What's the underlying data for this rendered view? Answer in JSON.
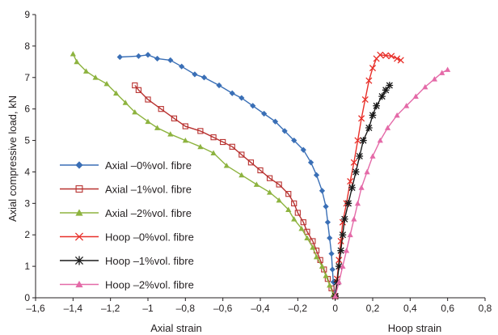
{
  "chart_data": {
    "type": "scatter",
    "title": "",
    "ylabel": "Axial compressive load, kN",
    "xlabel_left": "Axial strain",
    "xlabel_right": "Hoop strain",
    "xlim": [
      -1.6,
      0.8
    ],
    "ylim": [
      0,
      9
    ],
    "x_ticks": [
      -1.6,
      -1.4,
      -1.2,
      -1,
      -0.8,
      -0.6,
      -0.4,
      -0.2,
      0,
      0.2,
      0.4,
      0.6,
      0.8
    ],
    "x_tick_labels": [
      "–1,6",
      "–1,4",
      "–1,2",
      "–1",
      "–0,8",
      "–0,6",
      "–0,4",
      "–0,2",
      "0",
      "0,2",
      "0,4",
      "0,6",
      "0,8"
    ],
    "y_ticks": [
      0,
      1,
      2,
      3,
      4,
      5,
      6,
      7,
      8,
      9
    ],
    "y_tick_labels": [
      "0",
      "1",
      "2",
      "3",
      "4",
      "5",
      "6",
      "7",
      "8",
      "9"
    ],
    "grid": false,
    "legend_position": "left",
    "series": [
      {
        "name": "Axial –0%vol. fibre",
        "color": "#3a6fb6",
        "marker": "diamond",
        "points": [
          [
            -1.15,
            7.65
          ],
          [
            -1.05,
            7.68
          ],
          [
            -1.0,
            7.72
          ],
          [
            -0.95,
            7.6
          ],
          [
            -0.88,
            7.55
          ],
          [
            -0.82,
            7.35
          ],
          [
            -0.75,
            7.1
          ],
          [
            -0.7,
            7.0
          ],
          [
            -0.62,
            6.75
          ],
          [
            -0.55,
            6.5
          ],
          [
            -0.5,
            6.35
          ],
          [
            -0.44,
            6.1
          ],
          [
            -0.38,
            5.85
          ],
          [
            -0.32,
            5.6
          ],
          [
            -0.27,
            5.3
          ],
          [
            -0.22,
            5.0
          ],
          [
            -0.17,
            4.7
          ],
          [
            -0.13,
            4.3
          ],
          [
            -0.1,
            3.9
          ],
          [
            -0.07,
            3.4
          ],
          [
            -0.05,
            2.9
          ],
          [
            -0.04,
            2.4
          ],
          [
            -0.03,
            1.9
          ],
          [
            -0.02,
            1.4
          ],
          [
            -0.015,
            0.9
          ],
          [
            -0.01,
            0.5
          ],
          [
            0.0,
            0.05
          ]
        ]
      },
      {
        "name": "Axial –1%vol. fibre",
        "color": "#b8312f",
        "marker": "square",
        "points": [
          [
            -1.07,
            6.75
          ],
          [
            -1.05,
            6.6
          ],
          [
            -1.0,
            6.3
          ],
          [
            -0.93,
            6.0
          ],
          [
            -0.86,
            5.7
          ],
          [
            -0.8,
            5.45
          ],
          [
            -0.72,
            5.3
          ],
          [
            -0.65,
            5.1
          ],
          [
            -0.6,
            4.95
          ],
          [
            -0.55,
            4.8
          ],
          [
            -0.5,
            4.55
          ],
          [
            -0.45,
            4.3
          ],
          [
            -0.4,
            4.05
          ],
          [
            -0.35,
            3.8
          ],
          [
            -0.3,
            3.6
          ],
          [
            -0.25,
            3.3
          ],
          [
            -0.22,
            3.0
          ],
          [
            -0.2,
            2.7
          ],
          [
            -0.17,
            2.4
          ],
          [
            -0.15,
            2.1
          ],
          [
            -0.12,
            1.8
          ],
          [
            -0.1,
            1.5
          ],
          [
            -0.08,
            1.2
          ],
          [
            -0.06,
            0.9
          ],
          [
            -0.04,
            0.6
          ],
          [
            -0.02,
            0.3
          ],
          [
            0.0,
            0.05
          ]
        ]
      },
      {
        "name": "Axial –2%vol. fibre",
        "color": "#8db33f",
        "marker": "triangle",
        "points": [
          [
            -1.4,
            7.75
          ],
          [
            -1.38,
            7.5
          ],
          [
            -1.33,
            7.2
          ],
          [
            -1.28,
            7.0
          ],
          [
            -1.22,
            6.8
          ],
          [
            -1.17,
            6.5
          ],
          [
            -1.12,
            6.2
          ],
          [
            -1.07,
            5.9
          ],
          [
            -1.0,
            5.6
          ],
          [
            -0.95,
            5.4
          ],
          [
            -0.88,
            5.2
          ],
          [
            -0.8,
            5.0
          ],
          [
            -0.72,
            4.8
          ],
          [
            -0.65,
            4.6
          ],
          [
            -0.58,
            4.2
          ],
          [
            -0.5,
            3.9
          ],
          [
            -0.42,
            3.6
          ],
          [
            -0.35,
            3.35
          ],
          [
            -0.3,
            3.1
          ],
          [
            -0.25,
            2.8
          ],
          [
            -0.22,
            2.5
          ],
          [
            -0.18,
            2.2
          ],
          [
            -0.15,
            1.9
          ],
          [
            -0.12,
            1.6
          ],
          [
            -0.1,
            1.3
          ],
          [
            -0.07,
            1.0
          ],
          [
            -0.05,
            0.7
          ],
          [
            -0.03,
            0.4
          ],
          [
            -0.01,
            0.1
          ]
        ]
      },
      {
        "name": "Hoop –0%vol. fibre",
        "color": "#e8302a",
        "marker": "x",
        "points": [
          [
            0.0,
            0.05
          ],
          [
            0.01,
            0.6
          ],
          [
            0.02,
            1.2
          ],
          [
            0.03,
            1.8
          ],
          [
            0.04,
            2.4
          ],
          [
            0.06,
            3.0
          ],
          [
            0.08,
            3.7
          ],
          [
            0.1,
            4.3
          ],
          [
            0.12,
            5.0
          ],
          [
            0.14,
            5.7
          ],
          [
            0.16,
            6.3
          ],
          [
            0.18,
            6.9
          ],
          [
            0.2,
            7.3
          ],
          [
            0.22,
            7.6
          ],
          [
            0.24,
            7.72
          ],
          [
            0.27,
            7.7
          ],
          [
            0.3,
            7.68
          ],
          [
            0.33,
            7.6
          ],
          [
            0.35,
            7.55
          ]
        ]
      },
      {
        "name": "Hoop –1%vol. fibre",
        "color": "#1a1a1a",
        "marker": "asterisk",
        "points": [
          [
            0.0,
            0.05
          ],
          [
            0.01,
            0.5
          ],
          [
            0.02,
            1.0
          ],
          [
            0.03,
            1.5
          ],
          [
            0.04,
            2.0
          ],
          [
            0.05,
            2.5
          ],
          [
            0.07,
            3.0
          ],
          [
            0.09,
            3.5
          ],
          [
            0.11,
            4.0
          ],
          [
            0.13,
            4.5
          ],
          [
            0.15,
            5.0
          ],
          [
            0.18,
            5.4
          ],
          [
            0.2,
            5.8
          ],
          [
            0.22,
            6.1
          ],
          [
            0.25,
            6.4
          ],
          [
            0.27,
            6.6
          ],
          [
            0.29,
            6.75
          ]
        ]
      },
      {
        "name": "Hoop –2%vol. fibre",
        "color": "#e46aa8",
        "marker": "triangle",
        "points": [
          [
            0.0,
            0.05
          ],
          [
            0.02,
            0.5
          ],
          [
            0.04,
            1.0
          ],
          [
            0.06,
            1.5
          ],
          [
            0.08,
            2.0
          ],
          [
            0.1,
            2.5
          ],
          [
            0.12,
            3.0
          ],
          [
            0.14,
            3.5
          ],
          [
            0.17,
            4.0
          ],
          [
            0.2,
            4.5
          ],
          [
            0.24,
            5.0
          ],
          [
            0.28,
            5.4
          ],
          [
            0.33,
            5.8
          ],
          [
            0.38,
            6.1
          ],
          [
            0.43,
            6.4
          ],
          [
            0.48,
            6.7
          ],
          [
            0.53,
            6.95
          ],
          [
            0.57,
            7.15
          ],
          [
            0.6,
            7.25
          ]
        ]
      }
    ]
  }
}
